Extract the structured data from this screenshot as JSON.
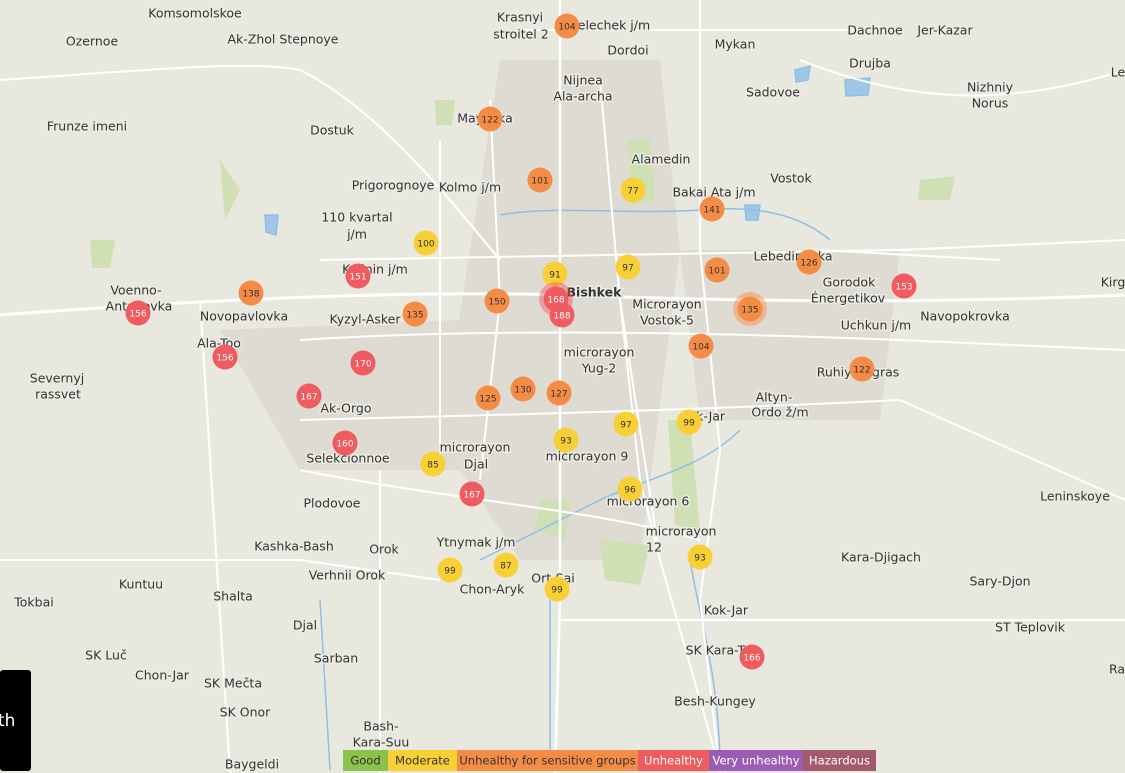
{
  "places": [
    "Komsomolskoe",
    "Ozernoe",
    "Ak-Zhol Stepnoye",
    "Krasnyi",
    "stroitel 2",
    "Selechek j/m",
    "Dordoi",
    "Mykan",
    "Dachnoe",
    "Jer-Kazar",
    "Drujba",
    "Nizhniy",
    "Norus",
    "Nijnea",
    "Ala-archa",
    "Sadovoe",
    "Frunze imeni",
    "Dostuk",
    "Mayevka",
    "Alamedin",
    "Vostok",
    "Prigorognoye",
    "Kolmo j/m",
    "Bakai Ata j/m",
    "110 kvartal",
    "j/m",
    "Lebedinovka",
    "Gorodok",
    "Énergetikov",
    "Kirg",
    "Voenno-",
    "Antonovka",
    "Kalinin j/m",
    "Bishkek",
    "Microrayon",
    "Vostok-5",
    "Novopavlovka",
    "Kyzyl-Asker",
    "Uchkun j/m",
    "Navopokrovka",
    "Ala-Too",
    "microrayon",
    "Yug-2",
    "Severnyj",
    "rassvet",
    "Ruhiy Bugras",
    "Altyn-",
    "Ordo ž/m",
    "Ak-Orgo",
    "Kok-Jar",
    "microrayon",
    "Djal",
    "microrayon 9",
    "Selekcionnoe",
    "Plodovoe",
    "microrayon 6",
    "Leninskoye",
    "microrayon",
    "12",
    "Kashka-Bash",
    "Orok",
    "Ytnymak j/m",
    "Kara-Djigach",
    "Verhnii Orok",
    "Ort-Sai",
    "Chon-Aryk",
    "Sary-Djon",
    "Tokbai",
    "Kuntuu",
    "Shalta",
    "Kok-Jar",
    "Djal",
    "ST Teplovik",
    "SK Luč",
    "Sarban",
    "SK Kara-Too",
    "Chon-Jar",
    "SK Mečta",
    "Besh-Kungey",
    "SK Onor",
    "Bash-",
    "Kara-Suu",
    "Baygeldi",
    "Ra",
    "Le"
  ],
  "markers": [
    104,
    122,
    101,
    77,
    141,
    100,
    91,
    97,
    101,
    126,
    151,
    153,
    138,
    156,
    150,
    168,
    188,
    135,
    135,
    104,
    156,
    170,
    122,
    167,
    130,
    125,
    127,
    97,
    99,
    93,
    160,
    85,
    167,
    96,
    93,
    99,
    87,
    99,
    166
  ],
  "legend": [
    "Good",
    "Moderate",
    "Unhealthy for sensitive groups",
    "Unhealthy",
    "Very unhealthy",
    "Hazardous"
  ],
  "corner_text": "th"
}
